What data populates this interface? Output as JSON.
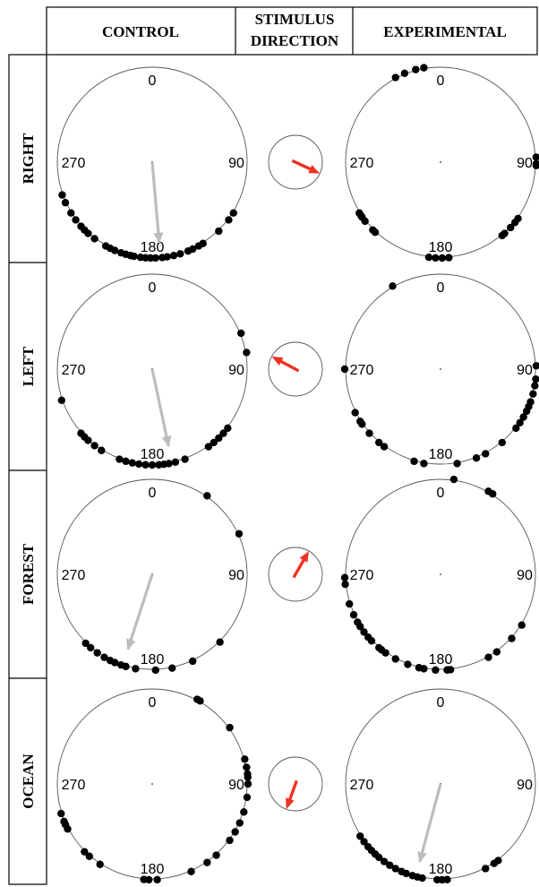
{
  "headers": {
    "control": "CONTROL",
    "stimulus_line1": "STIMULUS",
    "stimulus_line2": "DIRECTION",
    "experimental": "EXPERIMENTAL"
  },
  "degree_labels": {
    "top": "0",
    "right": "90",
    "bottom": "180",
    "left": "270"
  },
  "colors": {
    "dot": "#000000",
    "mean_vector": "#bdbdbd",
    "stimulus_arrow": "#ee3322",
    "circle": "#555555"
  },
  "rows": [
    {
      "label": "RIGHT",
      "stimulus_direction_deg": 115,
      "control": {
        "dots_deg": [
          122,
          127,
          136,
          148,
          151,
          155,
          158,
          163,
          167,
          171,
          174,
          178,
          181,
          184,
          187,
          191,
          193,
          196,
          199,
          203,
          206,
          209,
          217,
          222,
          225,
          228,
          233,
          238,
          245,
          250
        ],
        "mean_vector": {
          "angle_deg": 175,
          "length": 0.85
        }
      },
      "experimental": {
        "dots_deg": [
          87,
          91,
          92,
          126,
          129,
          133,
          138,
          140,
          175,
          179,
          183,
          187,
          223,
          225,
          232,
          235,
          236,
          238,
          332,
          338,
          345,
          350
        ],
        "mean_vector": null
      }
    },
    {
      "label": "LEFT",
      "stimulus_direction_deg": 298,
      "control": {
        "dots_deg": [
          68,
          80,
          128,
          132,
          136,
          140,
          144,
          160,
          166,
          170,
          173,
          176,
          180,
          184,
          188,
          192,
          196,
          200,
          212,
          217,
          222,
          225,
          228,
          251
        ],
        "mean_vector": {
          "angle_deg": 168,
          "length": 0.83
        }
      },
      "experimental": {
        "dots_deg": [
          88,
          96,
          100,
          105,
          110,
          113,
          116,
          120,
          124,
          128,
          140,
          152,
          158,
          170,
          190,
          196,
          216,
          220,
          228,
          235,
          237,
          243,
          270,
          330
        ],
        "mean_vector": null
      }
    },
    {
      "label": "FOREST",
      "stimulus_direction_deg": 30,
      "control": {
        "dots_deg": [
          65,
          35,
          135,
          155,
          168,
          178,
          190,
          196,
          199,
          203,
          206,
          210,
          215,
          220,
          224
        ],
        "mean_vector": {
          "angle_deg": 198,
          "length": 0.83
        }
      },
      "experimental": {
        "dots_deg": [
          8,
          30,
          33,
          122,
          132,
          144,
          150,
          174,
          176,
          183,
          190,
          193,
          200,
          208,
          215,
          218,
          220,
          226,
          229,
          233,
          237,
          240,
          245,
          252,
          264,
          268
        ],
        "mean_vector": null
      }
    },
    {
      "label": "OCEAN",
      "stimulus_direction_deg": 200,
      "control": {
        "dots_deg": [
          28,
          30,
          54,
          75,
          80,
          84,
          86,
          90,
          98,
          107,
          114,
          120,
          126,
          138,
          145,
          156,
          177,
          182,
          185,
          213,
          221,
          225,
          242,
          245,
          247,
          252
        ],
        "mean_vector": null
      },
      "experimental": {
        "dots_deg": [
          143,
          146,
          152,
          176,
          179,
          182,
          191,
          194,
          197,
          201,
          204,
          208,
          212,
          216,
          220,
          223,
          226,
          229,
          233,
          237
        ],
        "mean_vector": {
          "angle_deg": 195,
          "length": 0.85
        }
      }
    }
  ]
}
